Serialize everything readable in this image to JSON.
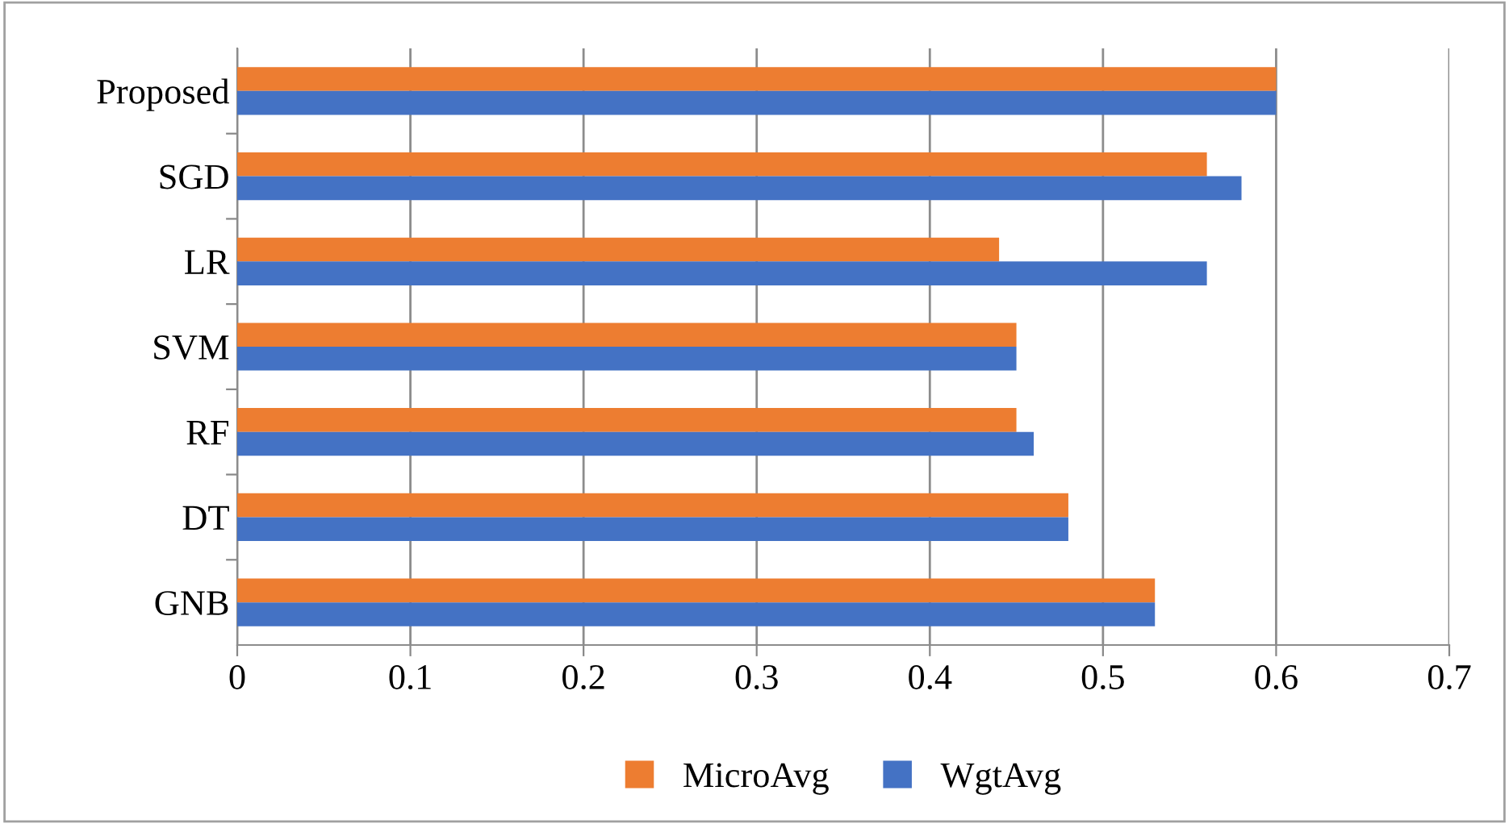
{
  "chart_data": {
    "type": "bar",
    "orientation": "horizontal",
    "categories": [
      "Proposed",
      "SGD",
      "LR",
      "SVM",
      "RF",
      "DT",
      "GNB"
    ],
    "series": [
      {
        "name": "MicroAvg",
        "color": "#ed7d31",
        "values": [
          0.6,
          0.56,
          0.44,
          0.45,
          0.45,
          0.48,
          0.53
        ]
      },
      {
        "name": "WgtAvg",
        "color": "#4472c4",
        "values": [
          0.6,
          0.58,
          0.56,
          0.45,
          0.46,
          0.48,
          0.53
        ]
      }
    ],
    "xlim": [
      0,
      0.7
    ],
    "xticks": [
      0,
      0.1,
      0.2,
      0.3,
      0.4,
      0.5,
      0.6,
      0.7
    ],
    "grid": "x",
    "legend": "bottom"
  }
}
